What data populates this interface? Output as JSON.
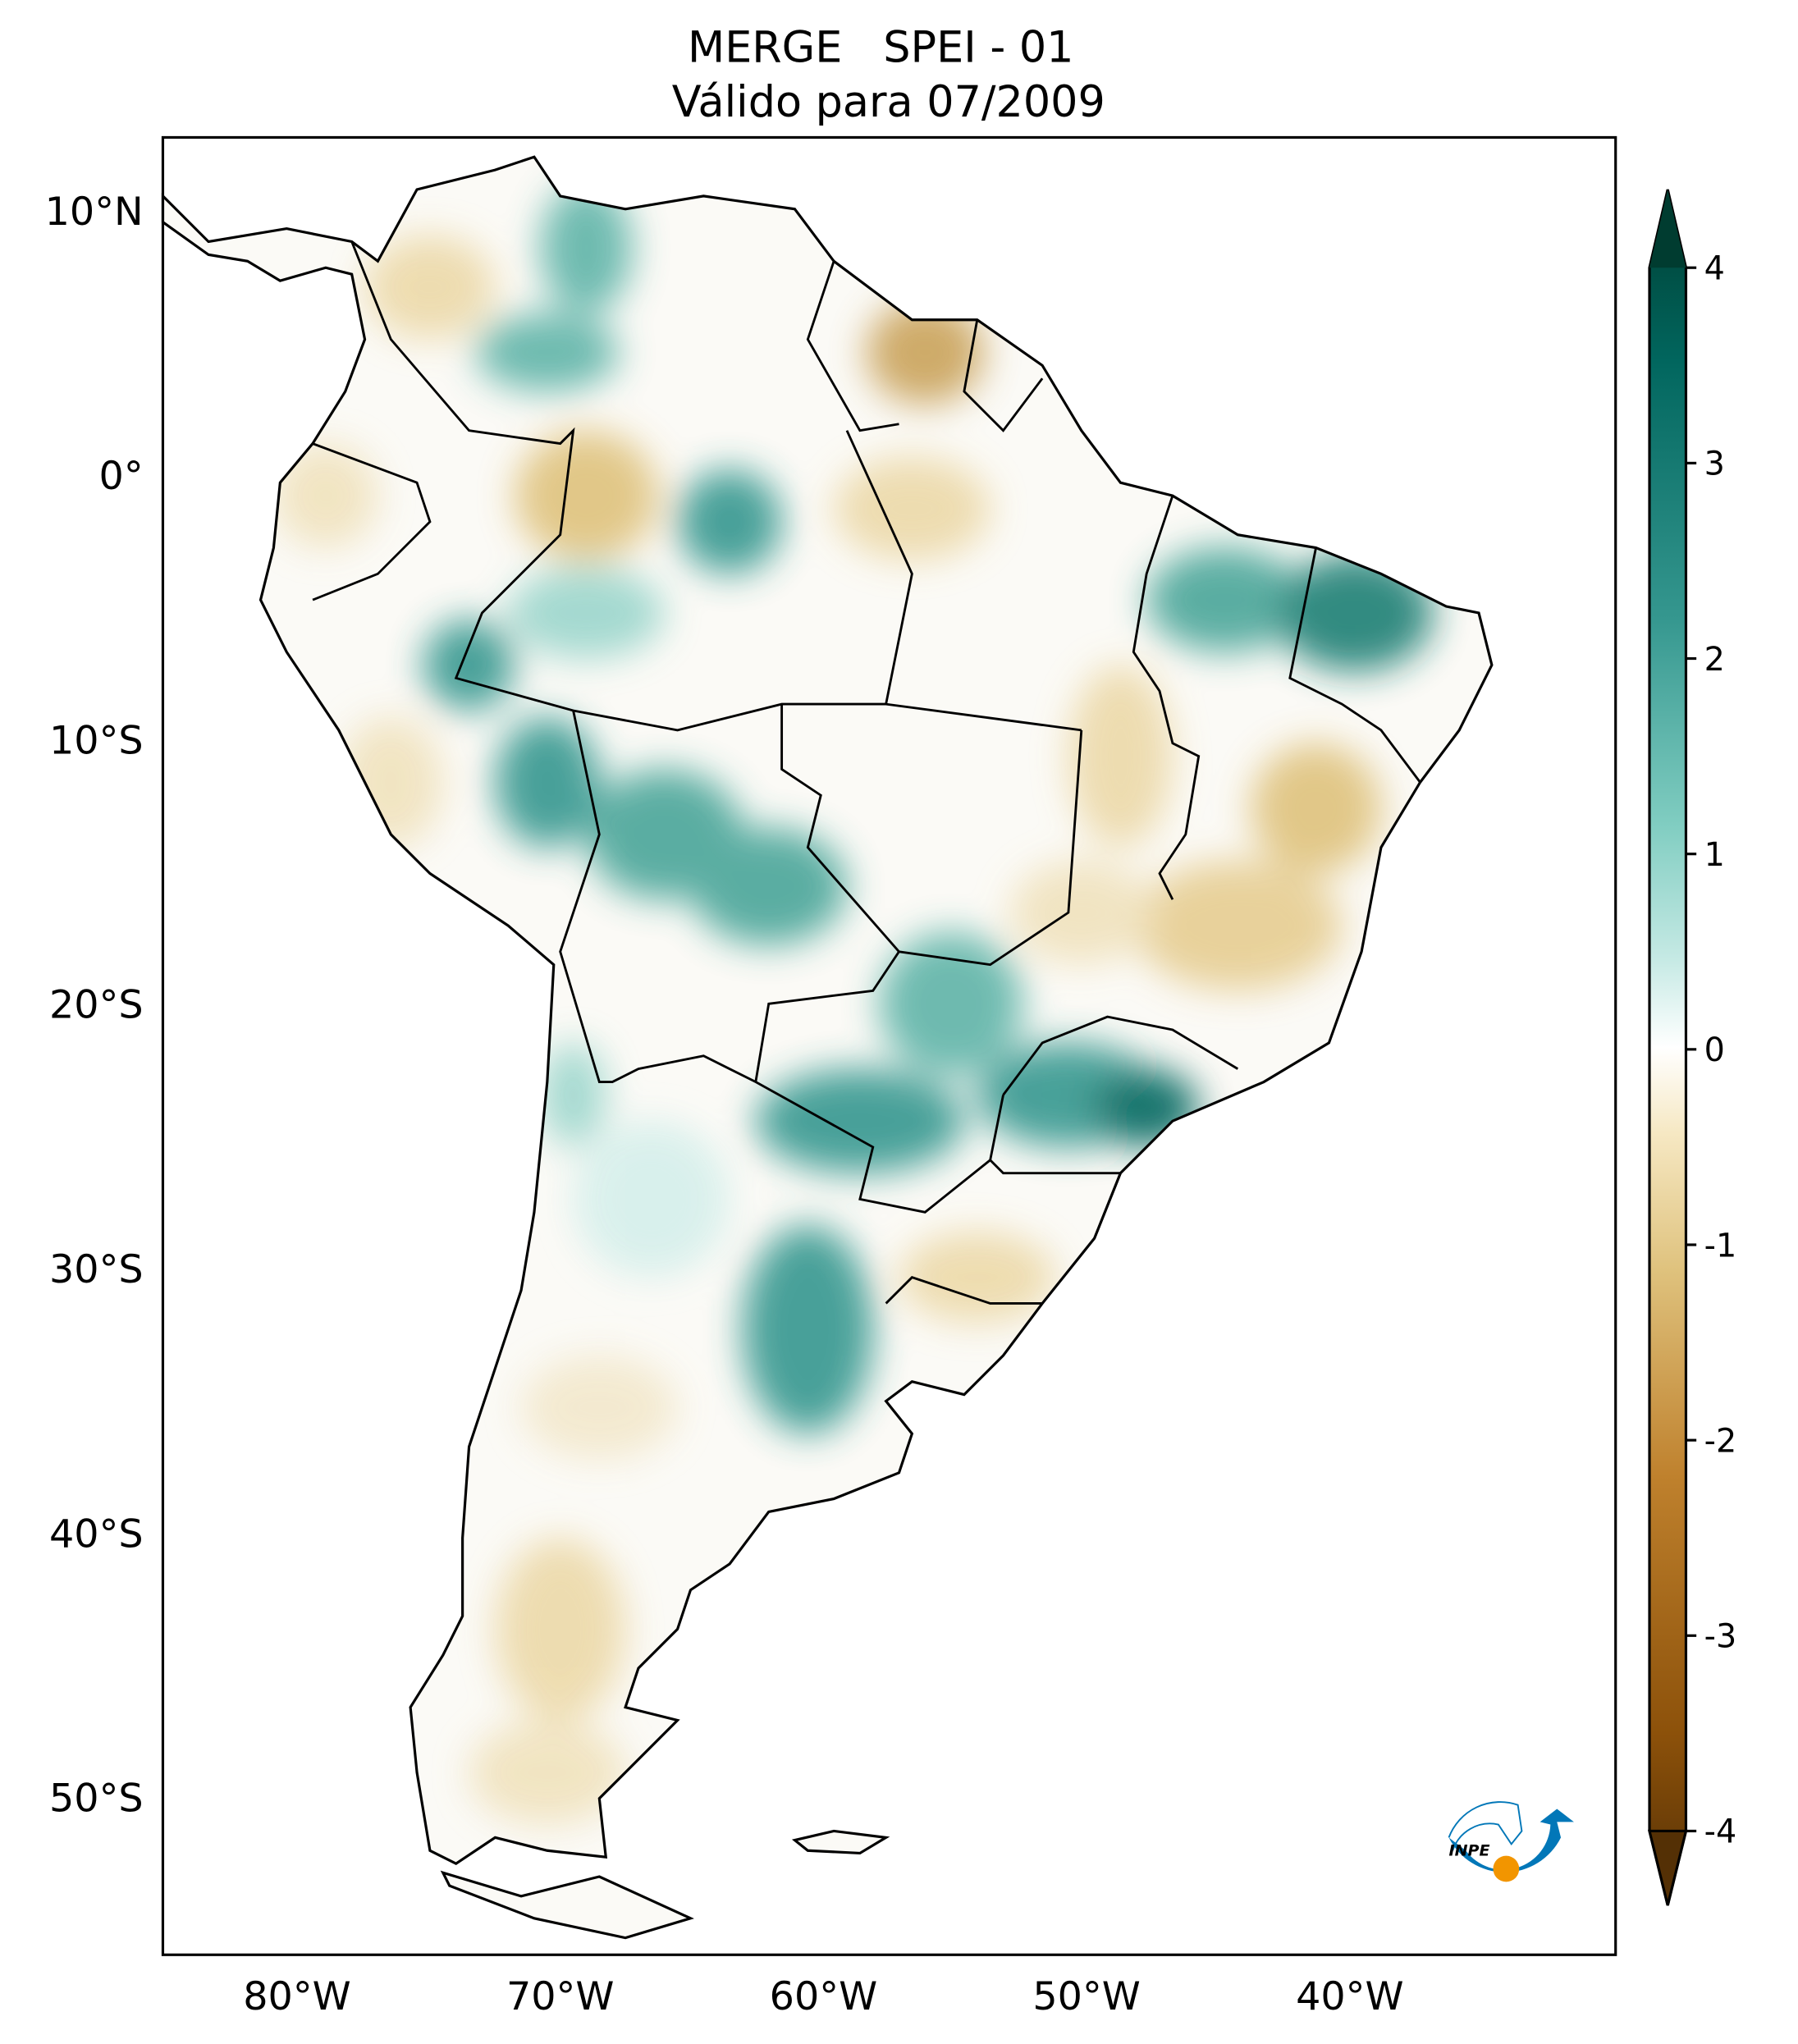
{
  "title": {
    "line1": "MERGE   SPEI - 01",
    "line2": "Válido para 07/2009"
  },
  "map": {
    "lat_labels": [
      "10°N",
      "0°",
      "10°S",
      "20°S",
      "30°S",
      "40°S",
      "50°S"
    ],
    "lon_labels": [
      "80°W",
      "70°W",
      "60°W",
      "50°W",
      "40°W"
    ],
    "lon_range": [
      "85°W",
      "30°W"
    ],
    "lat_range": [
      "13°N",
      "56°S"
    ]
  },
  "colorbar": {
    "ticks": [
      "4",
      "3",
      "2",
      "1",
      "0",
      "-1",
      "-2",
      "-3",
      "-4"
    ],
    "range": [
      -4,
      4
    ],
    "extend": "both",
    "colormap": "BrBG",
    "colors": [
      "#543005",
      "#8c510a",
      "#bf812d",
      "#dfc27d",
      "#f6e8c3",
      "#ffffff",
      "#c7eae5",
      "#80cdc1",
      "#35978f",
      "#01665e",
      "#003c30"
    ]
  },
  "logo": {
    "text": "INPE",
    "blue": "#0277b8",
    "orange": "#f29500"
  }
}
